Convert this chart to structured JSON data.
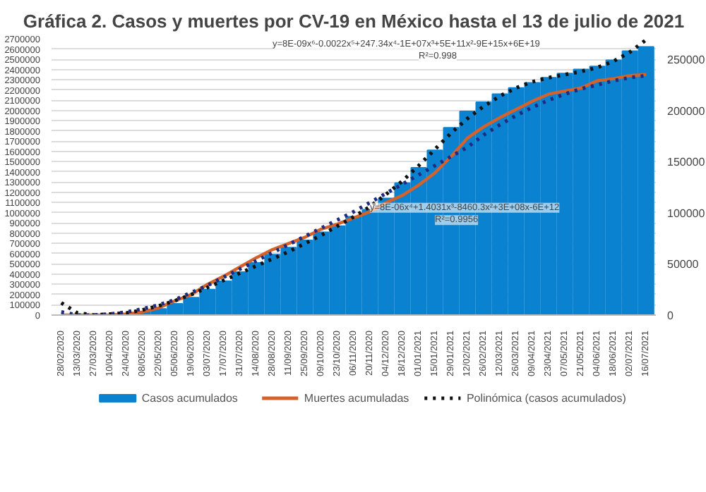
{
  "chart_data": {
    "type": "bar",
    "title": "Gráfica 2. Casos y muertes por CV-19 en México hasta el 13 de julio de 2021",
    "categories": [
      "28/02/2020",
      "13/03/2020",
      "27/03/2020",
      "10/04/2020",
      "24/04/2020",
      "08/05/2020",
      "22/05/2020",
      "05/06/2020",
      "19/06/2020",
      "03/07/2020",
      "17/07/2020",
      "31/07/2020",
      "14/08/2020",
      "28/08/2020",
      "11/09/2020",
      "25/09/2020",
      "09/10/2020",
      "23/10/2020",
      "06/11/2020",
      "20/11/2020",
      "04/12/2020",
      "18/12/2020",
      "01/01/2021",
      "15/01/2021",
      "29/01/2021",
      "12/02/2021",
      "26/02/2021",
      "12/03/2021",
      "26/03/2021",
      "09/04/2021",
      "23/04/2021",
      "07/05/2021",
      "21/05/2021",
      "04/06/2021",
      "18/06/2021",
      "02/07/2021",
      "16/07/2021"
    ],
    "series": [
      {
        "name": "Casos acumulados",
        "color": "#0a82d0",
        "values": [
          0,
          0,
          0,
          0,
          10000,
          30000,
          60000,
          110000,
          170000,
          250000,
          330000,
          420000,
          510000,
          590000,
          660000,
          730000,
          810000,
          870000,
          960000,
          1030000,
          1140000,
          1290000,
          1440000,
          1610000,
          1830000,
          1990000,
          2080000,
          2160000,
          2220000,
          2270000,
          2320000,
          2360000,
          2400000,
          2430000,
          2490000,
          2580000,
          2620000
        ]
      },
      {
        "name": "Muertes acumuladas",
        "type": "line",
        "axis": "y2",
        "color": "#d4622a",
        "values": [
          0,
          0,
          0,
          0,
          1000,
          3000,
          7000,
          14000,
          20000,
          30000,
          38000,
          47000,
          56000,
          64000,
          70000,
          76000,
          84000,
          89000,
          95000,
          101000,
          110000,
          117000,
          127000,
          139000,
          155000,
          173000,
          184000,
          193000,
          201000,
          209000,
          216000,
          219000,
          222000,
          229000,
          231000,
          234000,
          235000
        ]
      },
      {
        "name": "Polinómica (casos acumulados)",
        "type": "line",
        "line_style": "dotted",
        "color": "#111111",
        "values": [
          120000,
          20000,
          0,
          10000,
          20000,
          50000,
          90000,
          140000,
          200000,
          270000,
          340000,
          410000,
          480000,
          550000,
          620000,
          700000,
          780000,
          870000,
          960000,
          1060000,
          1180000,
          1310000,
          1460000,
          1620000,
          1780000,
          1920000,
          2040000,
          2140000,
          2220000,
          2280000,
          2320000,
          2350000,
          2380000,
          2420000,
          2480000,
          2570000,
          2690000
        ]
      },
      {
        "type": "line",
        "axis": "y2",
        "line_style": "dotted",
        "color": "#1f2a80",
        "values": [
          3000,
          0,
          0,
          1000,
          3000,
          6000,
          10000,
          15000,
          22000,
          29000,
          37000,
          45000,
          53000,
          61000,
          69000,
          77000,
          85000,
          93000,
          101000,
          110000,
          119000,
          128000,
          137000,
          146000,
          155000,
          164000,
          176000,
          186000,
          195000,
          203000,
          210000,
          216000,
          221000,
          225000,
          229000,
          232000,
          234000
        ]
      }
    ],
    "ylim": [
      0,
      2700000
    ],
    "yticks": [
      0,
      100000,
      200000,
      300000,
      400000,
      500000,
      600000,
      700000,
      800000,
      900000,
      1000000,
      1100000,
      1200000,
      1300000,
      1400000,
      1500000,
      1600000,
      1700000,
      1800000,
      1900000,
      2000000,
      2100000,
      2200000,
      2300000,
      2400000,
      2500000,
      2600000,
      2700000
    ],
    "y2lim": [
      0,
      270000
    ],
    "y2ticks": [
      0,
      50000,
      100000,
      150000,
      200000,
      250000
    ],
    "grid": "y",
    "legend": "bottom",
    "annotations": [
      "y=8E-09x⁶-0.0022x⁵+247.34x⁴-1E+07x³+5E+11x²-9E+15x+6E+19",
      "R²=0.998",
      "y=8E-06x⁴+1.4031x³-8460.3x²+3E+08x-6E+12",
      "R²=0.9956"
    ]
  }
}
